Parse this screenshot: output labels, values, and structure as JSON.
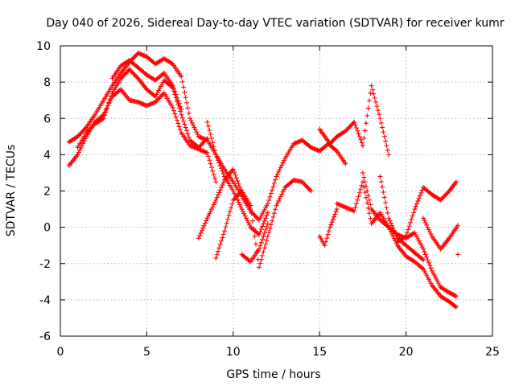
{
  "chart_data": {
    "type": "scatter",
    "title": "Day 040 of 2026, Sidereal Day-to-day VTEC variation (SDTVAR) for receiver kumr",
    "xlabel": "GPS time / hours",
    "ylabel": "SDTVAR / TECUs",
    "xlim": [
      0,
      25
    ],
    "ylim": [
      -6,
      10
    ],
    "xticks": [
      "0",
      "5",
      "10",
      "15",
      "20",
      "25"
    ],
    "yticks": [
      "-6",
      "-4",
      "-2",
      "0",
      "2",
      "4",
      "6",
      "8",
      "10"
    ],
    "grid": true,
    "marker": "+",
    "color": "#ff0000",
    "series": [
      {
        "x": [
          0.5,
          1.0,
          1.5,
          2.0,
          2.5,
          3.0,
          3.5,
          4.0,
          4.5,
          5.0,
          5.5,
          6.0,
          6.5,
          7.0,
          7.5,
          8.0,
          8.5,
          9.0,
          9.5,
          10.0,
          10.5,
          11.0,
          11.5,
          12.0
        ],
        "y": [
          4.7,
          5.0,
          5.5,
          6.2,
          7.0,
          7.8,
          8.5,
          9.1,
          9.6,
          9.4,
          9.0,
          9.3,
          9.0,
          8.3,
          6.0,
          5.0,
          4.8,
          4.0,
          2.8,
          2.0,
          1.0,
          0.0,
          -0.4,
          0.8
        ]
      },
      {
        "x": [
          0.5,
          1.0,
          1.5,
          2.0,
          2.5,
          3.0,
          3.5,
          4.0,
          4.5,
          5.0,
          5.5,
          6.0,
          6.5,
          7.0,
          7.5,
          8.0,
          8.5,
          9.0
        ],
        "y": [
          3.4,
          4.0,
          5.0,
          5.8,
          6.2,
          7.2,
          7.6,
          7.0,
          6.9,
          6.7,
          6.9,
          7.4,
          6.6,
          5.2,
          4.5,
          4.3,
          4.1,
          2.5
        ]
      },
      {
        "x": [
          1.0,
          1.5,
          2.0,
          2.5,
          3.0,
          3.5,
          4.0,
          4.5,
          5.0,
          5.5,
          6.0,
          6.5,
          7.0,
          7.5,
          8.0,
          8.5
        ],
        "y": [
          4.4,
          5.2,
          5.7,
          6.0,
          7.4,
          8.2,
          8.7,
          8.2,
          7.6,
          7.2,
          8.1,
          7.7,
          6.2,
          4.8,
          4.4,
          4.9
        ]
      },
      {
        "x": [
          3.0,
          3.5,
          4.0,
          4.5,
          5.0,
          5.5,
          6.0,
          6.5,
          7.0
        ],
        "y": [
          8.2,
          8.9,
          9.2,
          8.8,
          8.4,
          8.1,
          8.5,
          7.8,
          6.5
        ]
      },
      {
        "x": [
          8.5,
          9.0,
          9.5,
          10.0,
          10.5,
          11.0,
          11.5,
          12.0,
          12.5,
          13.0,
          13.5,
          14.0,
          14.5,
          15.0,
          15.5,
          16.0,
          16.5
        ],
        "y": [
          5.8,
          4.0,
          3.2,
          2.5,
          1.7,
          0.9,
          0.4,
          1.3,
          2.8,
          3.8,
          4.6,
          4.8,
          4.4,
          4.2,
          4.6,
          4.2,
          3.5
        ]
      },
      {
        "x": [
          9.0,
          9.5,
          10.0,
          10.5,
          11.0,
          11.5,
          12.0,
          12.5,
          13.0,
          13.5,
          14.0,
          14.5
        ],
        "y": [
          -1.7,
          -0.2,
          1.5,
          2.0,
          1.2,
          -2.2,
          -0.5,
          1.2,
          2.2,
          2.6,
          2.5,
          2.0
        ]
      },
      {
        "x": [
          8.0,
          8.5,
          9.0,
          9.5,
          10.0,
          10.5,
          11.0
        ],
        "y": [
          -0.6,
          0.5,
          1.5,
          2.6,
          3.2,
          1.9,
          1.0
        ]
      },
      {
        "x": [
          10.5,
          11.0,
          11.5,
          12.0
        ],
        "y": [
          -1.5,
          -1.9,
          -1.2,
          0.2
        ]
      },
      {
        "x": [
          15.0,
          15.3,
          15.6,
          16.0,
          16.5,
          17.0,
          17.5,
          18.0,
          18.5,
          19.0
        ],
        "y": [
          5.4,
          5.0,
          4.6,
          5.0,
          5.3,
          5.8,
          4.5,
          7.8,
          6.0,
          4.0
        ]
      },
      {
        "x": [
          15.0,
          15.3,
          15.6,
          16.0
        ],
        "y": [
          -0.5,
          -1.0,
          0.0,
          1.0
        ]
      },
      {
        "x": [
          16.0,
          16.5,
          17.0,
          17.5,
          18.0,
          18.5,
          19.0,
          19.5,
          20.0,
          20.5,
          21.0,
          21.5,
          22.0,
          22.5,
          22.9
        ],
        "y": [
          1.3,
          1.1,
          0.9,
          2.5,
          0.2,
          0.8,
          0.0,
          -1.0,
          -1.6,
          -1.9,
          -2.3,
          -3.2,
          -3.8,
          -4.1,
          -4.4
        ]
      },
      {
        "x": [
          17.5,
          18.0,
          18.5,
          19.0,
          19.5,
          20.0,
          20.5,
          21.0,
          21.5,
          22.0,
          22.5,
          22.9
        ],
        "y": [
          3.0,
          1.0,
          0.4,
          0.0,
          -0.4,
          -0.6,
          -0.3,
          -1.2,
          -2.4,
          -3.3,
          -3.6,
          -3.8
        ]
      },
      {
        "x": [
          18.5,
          19.0,
          19.5,
          20.0,
          20.5,
          21.0
        ],
        "y": [
          2.8,
          0.5,
          -0.6,
          -1.0,
          -1.4,
          -1.8
        ]
      },
      {
        "x": [
          19.5,
          20.0,
          20.5,
          21.0,
          21.5,
          22.0,
          22.5,
          22.9
        ],
        "y": [
          -0.8,
          -0.5,
          1.0,
          2.2,
          1.8,
          1.5,
          2.0,
          2.5
        ]
      },
      {
        "x": [
          21.0,
          21.5,
          22.0,
          22.5,
          23.0
        ],
        "y": [
          0.5,
          -0.5,
          -1.2,
          -0.6,
          0.1
        ]
      },
      {
        "x": [
          23.0
        ],
        "y": [
          -1.5
        ]
      }
    ]
  }
}
